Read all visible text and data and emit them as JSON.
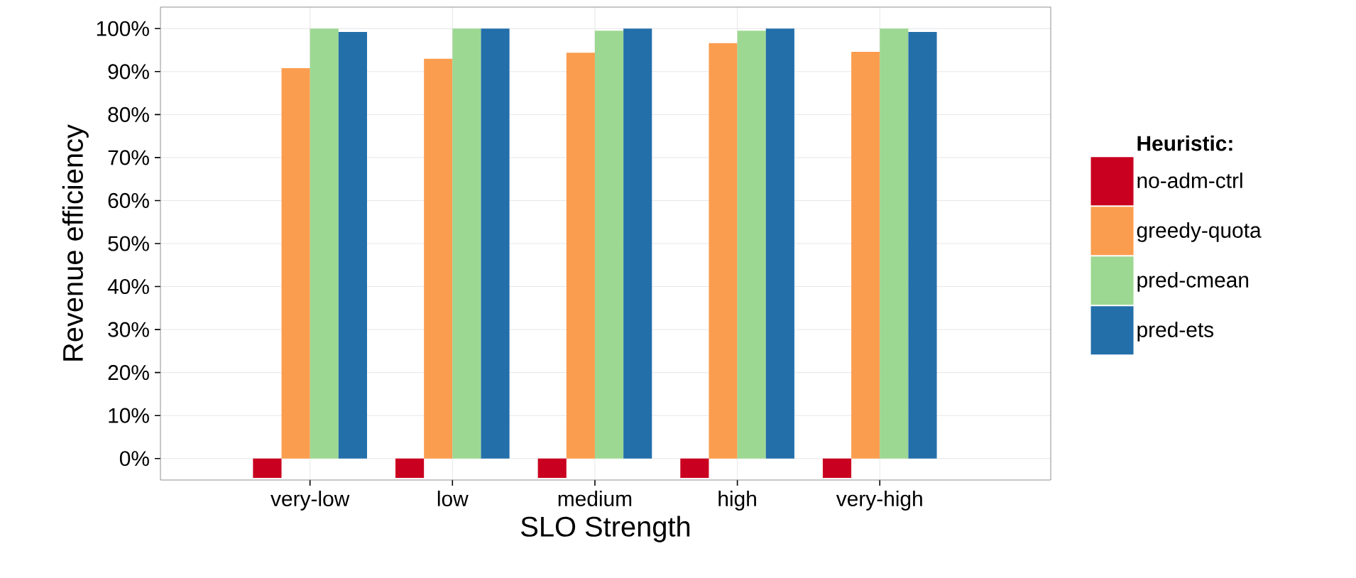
{
  "chart_data": {
    "type": "bar",
    "xlabel": "SLO Strength",
    "ylabel": "Revenue efficiency",
    "legend_title": "Heuristic:",
    "legend": "right",
    "grid": true,
    "categories": [
      "very-low",
      "low",
      "medium",
      "high",
      "very-high"
    ],
    "ylim": [
      -5,
      105
    ],
    "yticks": [
      {
        "value": 0,
        "label": "0%"
      },
      {
        "value": 10,
        "label": "10%"
      },
      {
        "value": 20,
        "label": "20%"
      },
      {
        "value": 30,
        "label": "30%"
      },
      {
        "value": 40,
        "label": "40%"
      },
      {
        "value": 50,
        "label": "50%"
      },
      {
        "value": 60,
        "label": "60%"
      },
      {
        "value": 70,
        "label": "70%"
      },
      {
        "value": 80,
        "label": "80%"
      },
      {
        "value": 90,
        "label": "90%"
      },
      {
        "value": 100,
        "label": "100%"
      }
    ],
    "series": [
      {
        "name": "no-adm-ctrl",
        "color": "#ca0020",
        "values": [
          -4.5,
          -4.5,
          -4.5,
          -4.5,
          -4.5
        ]
      },
      {
        "name": "greedy-quota",
        "color": "#fb9d4f",
        "values": [
          90.8,
          93.0,
          94.4,
          96.6,
          94.6
        ]
      },
      {
        "name": "pred-cmean",
        "color": "#9dd892",
        "values": [
          100,
          100,
          99.5,
          99.5,
          100
        ]
      },
      {
        "name": "pred-ets",
        "color": "#236faa",
        "values": [
          99.2,
          100,
          100,
          100,
          99.2
        ]
      }
    ]
  }
}
